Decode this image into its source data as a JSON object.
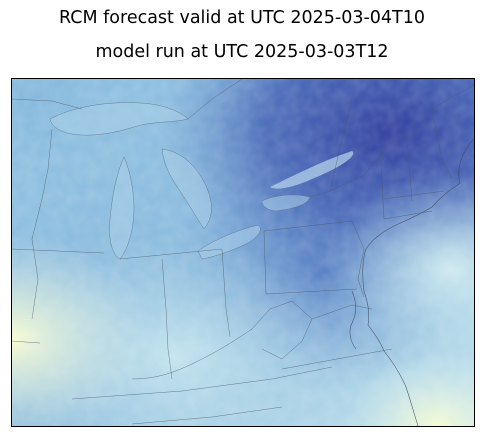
{
  "figure": {
    "title_line_1": "RCM forecast valid at UTC 2025-03-04T10",
    "title_line_2": "model run at UTC 2025-03-03T12"
  },
  "map": {
    "colors": {
      "deep_blue": "#2a3d9e",
      "mid_blue": "#4a72be",
      "light_blue": "#9ccbe4",
      "pale_cyan": "#d8eff0",
      "pale_yellow": "#f6fbd0",
      "boundary": "#555555"
    }
  }
}
